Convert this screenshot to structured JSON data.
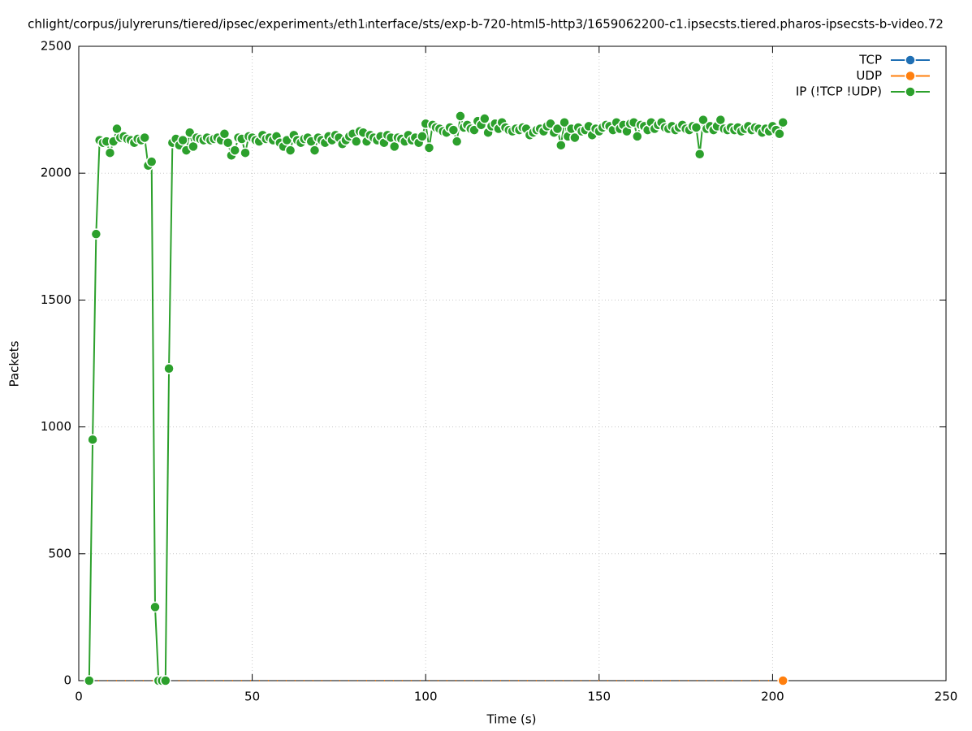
{
  "chart_data": {
    "type": "line",
    "title": "chlight/corpus/julyreruns/tiered/ipsec/experiment₃/eth1ᵢnterface/sts/exp-b-720-html5-http3/1659062200-c1.ipsecsts.tiered.pharos-ipsecsts-b-video.72",
    "xlabel": "Time (s)",
    "ylabel": "Packets",
    "xlim": [
      0,
      250
    ],
    "xticks": [
      0,
      50,
      100,
      150,
      200,
      250
    ],
    "ylim": [
      0,
      2500
    ],
    "yticks": [
      0,
      500,
      1000,
      1500,
      2000,
      2500
    ],
    "grid": true,
    "legend": "top-right",
    "x": [
      3,
      4,
      5,
      6,
      7,
      8,
      9,
      10,
      11,
      12,
      13,
      14,
      15,
      16,
      17,
      18,
      19,
      20,
      21,
      22,
      23,
      24,
      25,
      26,
      27,
      28,
      29,
      30,
      31,
      32,
      33,
      34,
      35,
      36,
      37,
      38,
      39,
      40,
      41,
      42,
      43,
      44,
      45,
      46,
      47,
      48,
      49,
      50,
      51,
      52,
      53,
      54,
      55,
      56,
      57,
      58,
      59,
      60,
      61,
      62,
      63,
      64,
      65,
      66,
      67,
      68,
      69,
      70,
      71,
      72,
      73,
      74,
      75,
      76,
      77,
      78,
      79,
      80,
      81,
      82,
      83,
      84,
      85,
      86,
      87,
      88,
      89,
      90,
      91,
      92,
      93,
      94,
      95,
      96,
      97,
      98,
      99,
      100,
      101,
      102,
      103,
      104,
      105,
      106,
      107,
      108,
      109,
      110,
      111,
      112,
      113,
      114,
      115,
      116,
      117,
      118,
      119,
      120,
      121,
      122,
      123,
      124,
      125,
      126,
      127,
      128,
      129,
      130,
      131,
      132,
      133,
      134,
      135,
      136,
      137,
      138,
      139,
      140,
      141,
      142,
      143,
      144,
      145,
      146,
      147,
      148,
      149,
      150,
      151,
      152,
      153,
      154,
      155,
      156,
      157,
      158,
      159,
      160,
      161,
      162,
      163,
      164,
      165,
      166,
      167,
      168,
      169,
      170,
      171,
      172,
      173,
      174,
      175,
      176,
      177,
      178,
      179,
      180,
      181,
      182,
      183,
      184,
      185,
      186,
      187,
      188,
      189,
      190,
      191,
      192,
      193,
      194,
      195,
      196,
      197,
      198,
      199,
      200,
      201,
      202,
      203
    ],
    "series": [
      {
        "name": "TCP",
        "color": "#1f6fb4",
        "values": [
          0,
          0,
          0,
          0,
          0,
          0,
          0,
          0,
          0,
          0,
          0,
          0,
          0,
          0,
          0,
          0,
          0,
          0,
          0,
          0,
          0,
          0,
          0,
          0,
          0,
          0,
          0,
          0,
          0,
          0,
          0,
          0,
          0,
          0,
          0,
          0,
          0,
          0,
          0,
          0,
          0,
          0,
          0,
          0,
          0,
          0,
          0,
          0,
          0,
          0,
          0,
          0,
          0,
          0,
          0,
          0,
          0,
          0,
          0,
          0,
          0,
          0,
          0,
          0,
          0,
          0,
          0,
          0,
          0,
          0,
          0,
          0,
          0,
          0,
          0,
          0,
          0,
          0,
          0,
          0,
          0,
          0,
          0,
          0,
          0,
          0,
          0,
          0,
          0,
          0,
          0,
          0,
          0,
          0,
          0,
          0,
          0,
          0,
          0,
          0,
          0,
          0,
          0,
          0,
          0,
          0,
          0,
          0,
          0,
          0,
          0,
          0,
          0,
          0,
          0,
          0,
          0,
          0,
          0,
          0,
          0,
          0,
          0,
          0,
          0,
          0,
          0,
          0,
          0,
          0,
          0,
          0,
          0,
          0,
          0,
          0,
          0,
          0,
          0,
          0,
          0,
          0,
          0,
          0,
          0,
          0,
          0,
          0,
          0,
          0,
          0,
          0,
          0,
          0,
          0,
          0,
          0,
          0,
          0,
          0,
          0,
          0,
          0,
          0,
          0,
          0,
          0,
          0,
          0,
          0,
          0,
          0,
          0,
          0,
          0,
          0,
          0,
          0,
          0,
          0,
          0,
          0,
          0,
          0,
          0,
          0,
          0,
          0,
          0,
          0,
          0,
          0,
          0,
          0,
          0,
          0,
          0,
          0,
          0,
          0,
          0
        ]
      },
      {
        "name": "UDP",
        "color": "#ff7f0e",
        "values": [
          0,
          0,
          0,
          0,
          0,
          0,
          0,
          0,
          0,
          0,
          0,
          0,
          0,
          0,
          0,
          0,
          0,
          0,
          0,
          0,
          0,
          0,
          0,
          0,
          0,
          0,
          0,
          0,
          0,
          0,
          0,
          0,
          0,
          0,
          0,
          0,
          0,
          0,
          0,
          0,
          0,
          0,
          0,
          0,
          0,
          0,
          0,
          0,
          0,
          0,
          0,
          0,
          0,
          0,
          0,
          0,
          0,
          0,
          0,
          0,
          0,
          0,
          0,
          0,
          0,
          0,
          0,
          0,
          0,
          0,
          0,
          0,
          0,
          0,
          0,
          0,
          0,
          0,
          0,
          0,
          0,
          0,
          0,
          0,
          0,
          0,
          0,
          0,
          0,
          0,
          0,
          0,
          0,
          0,
          0,
          0,
          0,
          0,
          0,
          0,
          0,
          0,
          0,
          0,
          0,
          0,
          0,
          0,
          0,
          0,
          0,
          0,
          0,
          0,
          0,
          0,
          0,
          0,
          0,
          0,
          0,
          0,
          0,
          0,
          0,
          0,
          0,
          0,
          0,
          0,
          0,
          0,
          0,
          0,
          0,
          0,
          0,
          0,
          0,
          0,
          0,
          0,
          0,
          0,
          0,
          0,
          0,
          0,
          0,
          0,
          0,
          0,
          0,
          0,
          0,
          0,
          0,
          0,
          0,
          0,
          0,
          0,
          0,
          0,
          0,
          0,
          0,
          0,
          0,
          0,
          0,
          0,
          0,
          0,
          0,
          0,
          0,
          0,
          0,
          0,
          0,
          0,
          0,
          0,
          0,
          0,
          0,
          0,
          0,
          0,
          0,
          0,
          0,
          0,
          0,
          0,
          0,
          0,
          0,
          0,
          0
        ]
      },
      {
        "name": "IP (!TCP  !UDP)",
        "color": "#2ca02c",
        "values": [
          0,
          950,
          1760,
          2130,
          2120,
          2125,
          2080,
          2125,
          2175,
          2140,
          2145,
          2135,
          2130,
          2120,
          2135,
          2130,
          2140,
          2030,
          2045,
          290,
          0,
          0,
          0,
          1230,
          2120,
          2135,
          2110,
          2130,
          2090,
          2160,
          2105,
          2140,
          2135,
          2130,
          2140,
          2130,
          2135,
          2140,
          2130,
          2155,
          2120,
          2070,
          2090,
          2140,
          2135,
          2080,
          2145,
          2140,
          2130,
          2125,
          2150,
          2135,
          2140,
          2130,
          2145,
          2120,
          2105,
          2130,
          2090,
          2150,
          2130,
          2120,
          2135,
          2140,
          2125,
          2090,
          2140,
          2130,
          2120,
          2145,
          2130,
          2150,
          2140,
          2115,
          2130,
          2145,
          2155,
          2125,
          2165,
          2160,
          2125,
          2150,
          2140,
          2130,
          2145,
          2120,
          2150,
          2140,
          2105,
          2140,
          2135,
          2125,
          2150,
          2130,
          2140,
          2120,
          2145,
          2195,
          2100,
          2190,
          2180,
          2175,
          2165,
          2160,
          2180,
          2170,
          2125,
          2225,
          2180,
          2190,
          2175,
          2170,
          2205,
          2190,
          2215,
          2160,
          2185,
          2195,
          2175,
          2200,
          2180,
          2170,
          2165,
          2175,
          2170,
          2180,
          2175,
          2150,
          2160,
          2170,
          2175,
          2165,
          2185,
          2195,
          2160,
          2175,
          2110,
          2200,
          2145,
          2175,
          2140,
          2180,
          2165,
          2170,
          2185,
          2150,
          2175,
          2165,
          2180,
          2190,
          2185,
          2170,
          2200,
          2175,
          2190,
          2165,
          2195,
          2200,
          2145,
          2190,
          2185,
          2170,
          2200,
          2175,
          2190,
          2200,
          2180,
          2175,
          2185,
          2170,
          2180,
          2190,
          2175,
          2170,
          2185,
          2180,
          2075,
          2210,
          2175,
          2185,
          2170,
          2185,
          2210,
          2175,
          2170,
          2180,
          2170,
          2180,
          2165,
          2175,
          2185,
          2170,
          2180,
          2175,
          2160,
          2175,
          2165,
          2185,
          2170,
          2155,
          2200
        ]
      }
    ]
  }
}
